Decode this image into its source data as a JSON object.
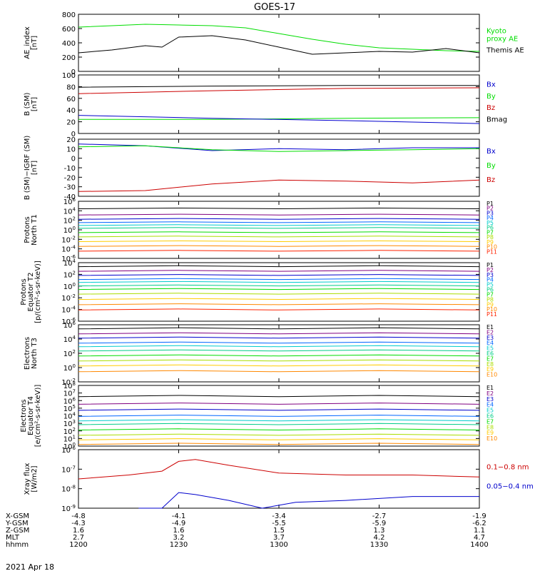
{
  "title": "GOES-17",
  "date_label": "2021 Apr 18",
  "ephemeris": {
    "row_labels": [
      "X-GSM",
      "Y-GSM",
      "Z-GSM",
      "MLT",
      "hhmm"
    ],
    "columns": [
      {
        "X-GSM": "-4.8",
        "Y-GSM": "-4.3",
        "Z-GSM": "1.6",
        "MLT": "2.7",
        "hhmm": "1200"
      },
      {
        "X-GSM": "-4.1",
        "Y-GSM": "-4.9",
        "Z-GSM": "1.6",
        "MLT": "3.2",
        "hhmm": "1230"
      },
      {
        "X-GSM": "-3.4",
        "Y-GSM": "-5.5",
        "Z-GSM": "1.5",
        "MLT": "3.7",
        "hhmm": "1300"
      },
      {
        "X-GSM": "-2.7",
        "Y-GSM": "-5.9",
        "Z-GSM": "1.3",
        "MLT": "4.2",
        "hhmm": "1330"
      },
      {
        "X-GSM": "-1.9",
        "Y-GSM": "-6.2",
        "Z-GSM": "1.1",
        "MLT": "4.7",
        "hhmm": "1400"
      }
    ]
  },
  "colors": {
    "black": "#000000",
    "green": "#00dd00",
    "blue": "#0000cc",
    "red": "#cc0000",
    "P": [
      "#000000",
      "#800080",
      "#0000cc",
      "#0066ff",
      "#00cccc",
      "#00cc88",
      "#00dd00",
      "#aadd00",
      "#ffcc00",
      "#ff8800",
      "#ff2200",
      "#cc0000"
    ]
  },
  "chart_data": [
    {
      "type": "line",
      "panel": "ae",
      "ylabel": "AE_index\n[nT]",
      "ylim": [
        0,
        800
      ],
      "yticks": [
        "0",
        "200",
        "400",
        "600",
        "800"
      ],
      "legend": [
        "Kyoto\nproxy AE",
        "Themis AE"
      ],
      "series": [
        {
          "name": "Kyoto proxy AE",
          "color": "#00dd00",
          "x": [
            0,
            10,
            20,
            30,
            40,
            50,
            60,
            70,
            80,
            90,
            100,
            110,
            120
          ],
          "values": [
            620,
            640,
            660,
            650,
            640,
            610,
            530,
            450,
            380,
            330,
            310,
            290,
            280
          ]
        },
        {
          "name": "Themis AE",
          "color": "#000000",
          "x": [
            0,
            10,
            20,
            25,
            30,
            40,
            50,
            60,
            70,
            80,
            90,
            100,
            110,
            120
          ],
          "values": [
            260,
            300,
            360,
            340,
            480,
            500,
            440,
            340,
            240,
            260,
            280,
            270,
            320,
            260
          ]
        }
      ]
    },
    {
      "type": "line",
      "panel": "b_sm",
      "ylabel": "B (SM)\n[nT]",
      "ylim": [
        0,
        100
      ],
      "yticks": [
        "0",
        "20",
        "40",
        "60",
        "80",
        "100"
      ],
      "legend": [
        "Bx",
        "By",
        "Bz",
        "Bmag"
      ],
      "series": [
        {
          "name": "Bmag",
          "color": "#000000",
          "x": [
            0,
            40,
            80,
            120
          ],
          "values": [
            79,
            81,
            82,
            82
          ]
        },
        {
          "name": "Bz",
          "color": "#cc0000",
          "x": [
            0,
            40,
            80,
            120
          ],
          "values": [
            68,
            73,
            77,
            78
          ]
        },
        {
          "name": "By",
          "color": "#00dd00",
          "x": [
            0,
            40,
            80,
            120
          ],
          "values": [
            24,
            24,
            26,
            27
          ]
        },
        {
          "name": "Bx",
          "color": "#0000cc",
          "x": [
            0,
            40,
            80,
            120
          ],
          "values": [
            31,
            26,
            22,
            17
          ]
        }
      ]
    },
    {
      "type": "line",
      "panel": "b_igrf",
      "ylabel": "B (SM)−IGRF (SM)\n[nT]",
      "ylim": [
        -40,
        20
      ],
      "yticks": [
        "-40",
        "-30",
        "-20",
        "-10",
        "0",
        "10",
        "20"
      ],
      "legend": [
        "Bx",
        "By",
        "Bz"
      ],
      "series": [
        {
          "name": "Bx",
          "color": "#0000cc",
          "x": [
            0,
            20,
            40,
            60,
            80,
            100,
            120
          ],
          "values": [
            15,
            13,
            8,
            10,
            9,
            11,
            11
          ]
        },
        {
          "name": "By",
          "color": "#00dd00",
          "x": [
            0,
            20,
            40,
            60,
            80,
            100,
            120
          ],
          "values": [
            12,
            13,
            9,
            7,
            8,
            9,
            10
          ]
        },
        {
          "name": "Bz",
          "color": "#cc0000",
          "x": [
            0,
            20,
            40,
            60,
            80,
            100,
            120
          ],
          "values": [
            -35,
            -34,
            -27,
            -23,
            -24,
            -26,
            -23
          ]
        }
      ]
    },
    {
      "type": "line",
      "panel": "prot_t1",
      "ylabel": "Protons\nNorth T1",
      "ylim_log": [
        -6,
        6
      ],
      "yticks": [
        "10^-6",
        "10^-4",
        "10^-2",
        "10^0",
        "10^2",
        "10^4",
        "10^6"
      ],
      "legend": [
        "P1",
        "P2",
        "P3",
        "P4",
        "P5",
        "P6",
        "P7",
        "P8",
        "P9",
        "P10",
        "P11"
      ],
      "series_log10": [
        4.5,
        3.2,
        2.3,
        1.6,
        1.0,
        0.4,
        -0.5,
        -1.4,
        -2.4,
        -3.4,
        -4.4
      ]
    },
    {
      "type": "line",
      "panel": "prot_t2",
      "ylabel": "Protons\nEquator T2\n[p/(cm²-s-sr-keV)]",
      "ylim_log": [
        -6,
        4
      ],
      "yticks": [
        "10^-6",
        "10^-4",
        "10^-2",
        "10^0",
        "10^2",
        "10^4"
      ],
      "legend": [
        "P1",
        "P2",
        "P3",
        "P4",
        "P5",
        "P6",
        "P7",
        "P8",
        "P9",
        "P10",
        "P11"
      ],
      "series_log10": [
        3.4,
        2.6,
        1.9,
        1.2,
        0.7,
        0.1,
        -0.5,
        -1.3,
        -2.2,
        -3.1,
        -4.0
      ]
    },
    {
      "type": "line",
      "panel": "elec_t3",
      "ylabel": "Electrons\nNorth T3",
      "ylim_log": [
        -2,
        6
      ],
      "yticks": [
        "10^-2",
        "10^0",
        "10^2",
        "10^4",
        "10^6"
      ],
      "legend": [
        "E1",
        "E2",
        "E3",
        "E4",
        "E5",
        "E6",
        "E7",
        "E8",
        "E9",
        "E10"
      ],
      "series_log10": [
        5.5,
        4.8,
        4.2,
        3.5,
        3.0,
        2.4,
        1.7,
        1.0,
        0.3,
        -0.5
      ]
    },
    {
      "type": "line",
      "panel": "elec_t4",
      "ylabel": "Electrons\nEquator T4\n[e/(cm²-s-sr-keV)]",
      "ylim_log": [
        0,
        8
      ],
      "yticks": [
        "10^0",
        "10^1",
        "10^2",
        "10^3",
        "10^4",
        "10^5",
        "10^6",
        "10^7",
        "10^8"
      ],
      "legend": [
        "E1",
        "E2",
        "E3",
        "E4",
        "E5",
        "E6",
        "E7",
        "E8",
        "E9",
        "E10"
      ],
      "series_log10": [
        6.6,
        5.6,
        4.8,
        4.0,
        3.4,
        2.9,
        2.2,
        1.5,
        0.9,
        0.3
      ]
    },
    {
      "type": "line",
      "panel": "xray",
      "ylabel": "Xray flux\n[W/m2]",
      "ylim_log": [
        -9,
        -6
      ],
      "yticks": [
        "10^-9",
        "10^-8",
        "10^-7",
        "10^-6"
      ],
      "legend": [
        "0.1−0.8 nm",
        "0.05−0.4 nm"
      ],
      "series": [
        {
          "name": "0.1-0.8 nm",
          "color": "#cc0000",
          "x": [
            0,
            15,
            25,
            30,
            35,
            45,
            60,
            80,
            100,
            120
          ],
          "log10": [
            -7.5,
            -7.3,
            -7.1,
            -6.6,
            -6.5,
            -6.8,
            -7.2,
            -7.3,
            -7.3,
            -7.4
          ]
        },
        {
          "name": "0.05-0.4 nm",
          "color": "#0000cc",
          "x": [
            18,
            25,
            30,
            35,
            45,
            55,
            65,
            80,
            100,
            120
          ],
          "log10": [
            -9.0,
            -9.0,
            -8.2,
            -8.3,
            -8.6,
            -9.0,
            -8.7,
            -8.6,
            -8.4,
            -8.4
          ]
        }
      ]
    }
  ]
}
